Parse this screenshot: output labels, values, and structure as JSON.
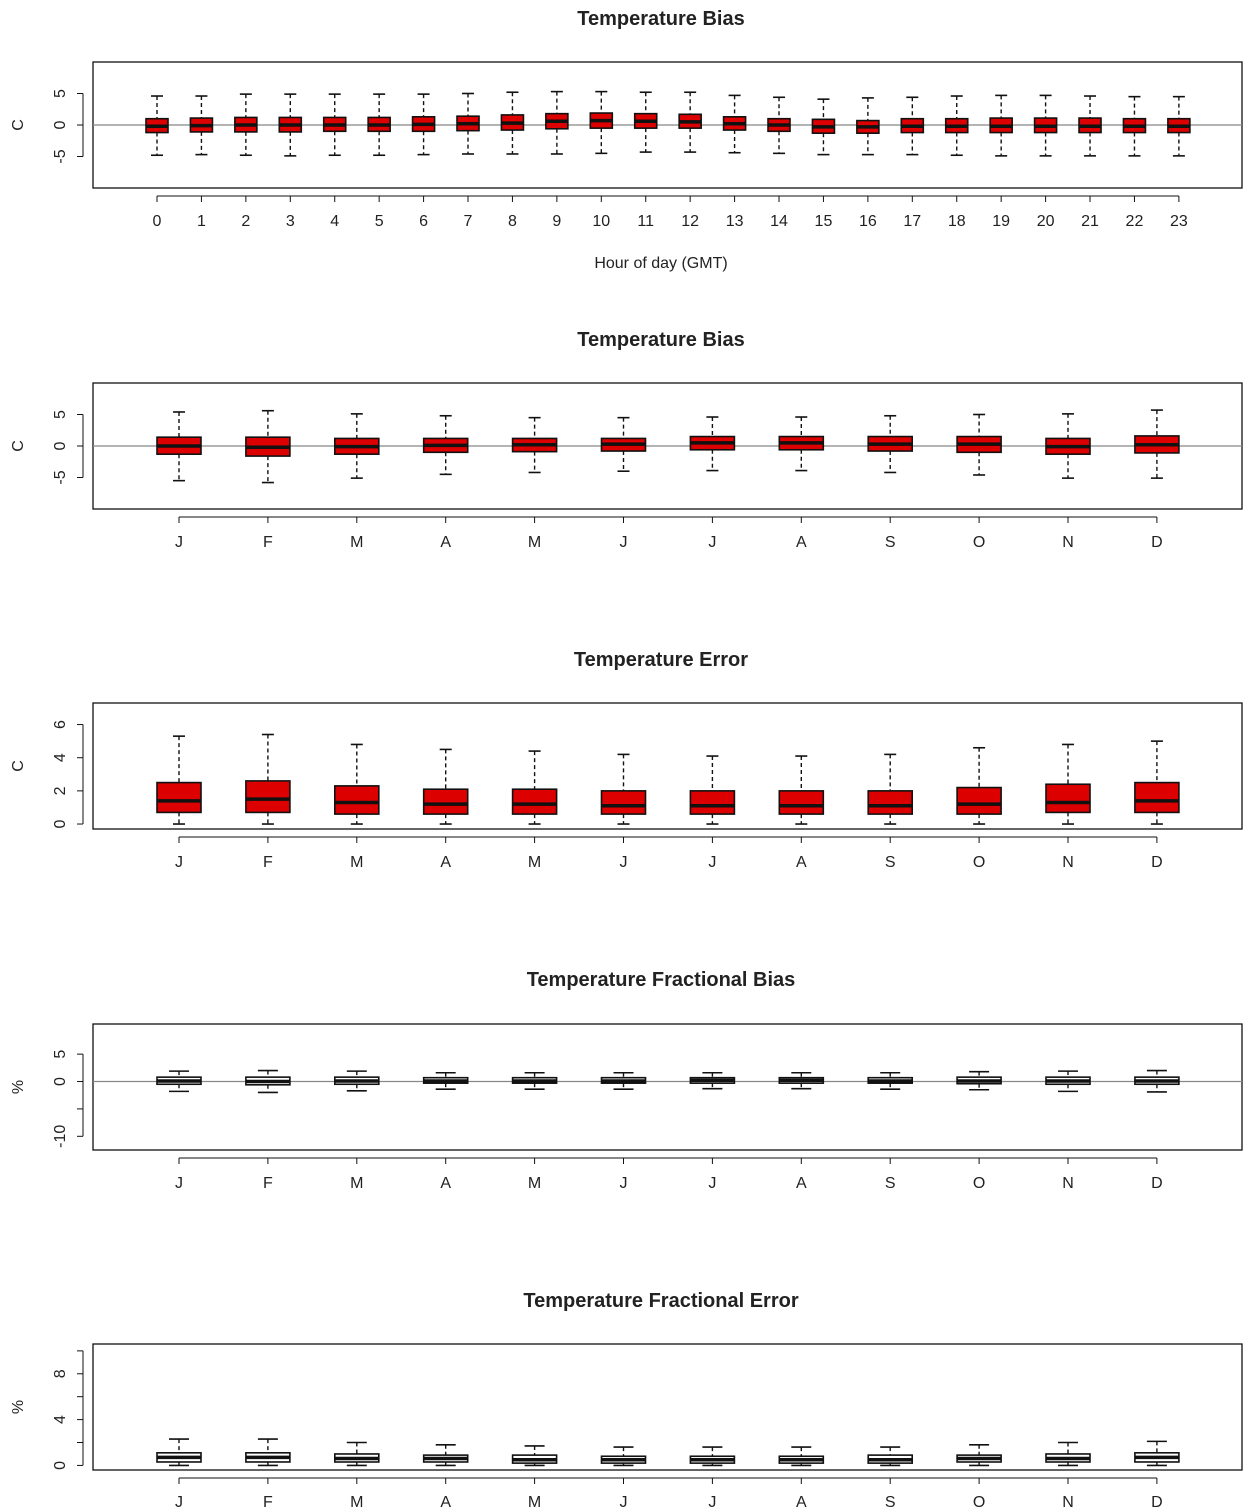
{
  "chart_data": [
    {
      "type": "box",
      "title": "Temperature Bias",
      "xlabel": "Hour of day (GMT)",
      "ylabel": "C",
      "ylim": [
        -10,
        10
      ],
      "yticks": [
        "5",
        "0",
        "-5"
      ],
      "ytick_values": [
        5,
        0,
        -5
      ],
      "reference_line": 0,
      "box_color": "#dd0000",
      "categories": [
        "0",
        "1",
        "2",
        "3",
        "4",
        "5",
        "6",
        "7",
        "8",
        "9",
        "10",
        "11",
        "12",
        "13",
        "14",
        "15",
        "16",
        "17",
        "18",
        "19",
        "20",
        "21",
        "22",
        "23"
      ],
      "boxes": [
        {
          "whislo": -4.8,
          "q1": -1.2,
          "med": -0.2,
          "q3": 1.0,
          "whishi": 4.6
        },
        {
          "whislo": -4.7,
          "q1": -1.1,
          "med": -0.1,
          "q3": 1.1,
          "whishi": 4.6
        },
        {
          "whislo": -4.8,
          "q1": -1.1,
          "med": 0.0,
          "q3": 1.2,
          "whishi": 4.9
        },
        {
          "whislo": -4.9,
          "q1": -1.1,
          "med": 0.0,
          "q3": 1.2,
          "whishi": 4.9
        },
        {
          "whislo": -4.8,
          "q1": -1.0,
          "med": 0.0,
          "q3": 1.2,
          "whishi": 4.9
        },
        {
          "whislo": -4.8,
          "q1": -1.0,
          "med": 0.0,
          "q3": 1.2,
          "whishi": 4.9
        },
        {
          "whislo": -4.7,
          "q1": -1.0,
          "med": 0.1,
          "q3": 1.3,
          "whishi": 4.9
        },
        {
          "whislo": -4.6,
          "q1": -0.9,
          "med": 0.2,
          "q3": 1.4,
          "whishi": 5.0
        },
        {
          "whislo": -4.6,
          "q1": -0.8,
          "med": 0.3,
          "q3": 1.6,
          "whishi": 5.2
        },
        {
          "whislo": -4.6,
          "q1": -0.6,
          "med": 0.6,
          "q3": 1.8,
          "whishi": 5.3
        },
        {
          "whislo": -4.5,
          "q1": -0.5,
          "med": 0.7,
          "q3": 1.9,
          "whishi": 5.3
        },
        {
          "whislo": -4.3,
          "q1": -0.5,
          "med": 0.6,
          "q3": 1.8,
          "whishi": 5.2
        },
        {
          "whislo": -4.3,
          "q1": -0.5,
          "med": 0.5,
          "q3": 1.7,
          "whishi": 5.2
        },
        {
          "whislo": -4.4,
          "q1": -0.8,
          "med": 0.2,
          "q3": 1.3,
          "whishi": 4.7
        },
        {
          "whislo": -4.5,
          "q1": -1.0,
          "med": 0.0,
          "q3": 1.0,
          "whishi": 4.4
        },
        {
          "whislo": -4.7,
          "q1": -1.3,
          "med": -0.3,
          "q3": 0.9,
          "whishi": 4.1
        },
        {
          "whislo": -4.7,
          "q1": -1.3,
          "med": -0.3,
          "q3": 0.7,
          "whishi": 4.3
        },
        {
          "whislo": -4.7,
          "q1": -1.2,
          "med": -0.2,
          "q3": 1.0,
          "whishi": 4.4
        },
        {
          "whislo": -4.8,
          "q1": -1.2,
          "med": -0.2,
          "q3": 1.0,
          "whishi": 4.6
        },
        {
          "whislo": -4.9,
          "q1": -1.2,
          "med": -0.2,
          "q3": 1.1,
          "whishi": 4.7
        },
        {
          "whislo": -4.9,
          "q1": -1.2,
          "med": -0.2,
          "q3": 1.1,
          "whishi": 4.7
        },
        {
          "whislo": -4.9,
          "q1": -1.2,
          "med": -0.2,
          "q3": 1.1,
          "whishi": 4.6
        },
        {
          "whislo": -4.9,
          "q1": -1.2,
          "med": -0.2,
          "q3": 1.0,
          "whishi": 4.5
        },
        {
          "whislo": -4.9,
          "q1": -1.2,
          "med": -0.2,
          "q3": 1.0,
          "whishi": 4.5
        }
      ]
    },
    {
      "type": "box",
      "title": "Temperature Bias",
      "xlabel": "",
      "ylabel": "C",
      "ylim": [
        -10,
        10
      ],
      "yticks": [
        "5",
        "0",
        "-5"
      ],
      "ytick_values": [
        5,
        0,
        -5
      ],
      "reference_line": 0,
      "box_color": "#dd0000",
      "categories": [
        "J",
        "F",
        "M",
        "A",
        "M",
        "J",
        "J",
        "A",
        "S",
        "O",
        "N",
        "D"
      ],
      "boxes": [
        {
          "whislo": -5.5,
          "q1": -1.3,
          "med": 0.0,
          "q3": 1.4,
          "whishi": 5.4
        },
        {
          "whislo": -5.8,
          "q1": -1.6,
          "med": -0.2,
          "q3": 1.4,
          "whishi": 5.6
        },
        {
          "whislo": -5.1,
          "q1": -1.3,
          "med": -0.1,
          "q3": 1.2,
          "whishi": 5.1
        },
        {
          "whislo": -4.5,
          "q1": -1.0,
          "med": 0.1,
          "q3": 1.2,
          "whishi": 4.8
        },
        {
          "whislo": -4.2,
          "q1": -0.9,
          "med": 0.2,
          "q3": 1.2,
          "whishi": 4.5
        },
        {
          "whislo": -4.0,
          "q1": -0.8,
          "med": 0.3,
          "q3": 1.2,
          "whishi": 4.5
        },
        {
          "whislo": -3.9,
          "q1": -0.6,
          "med": 0.5,
          "q3": 1.5,
          "whishi": 4.6
        },
        {
          "whislo": -3.9,
          "q1": -0.6,
          "med": 0.5,
          "q3": 1.5,
          "whishi": 4.6
        },
        {
          "whislo": -4.2,
          "q1": -0.8,
          "med": 0.3,
          "q3": 1.5,
          "whishi": 4.8
        },
        {
          "whislo": -4.6,
          "q1": -1.0,
          "med": 0.3,
          "q3": 1.5,
          "whishi": 5.0
        },
        {
          "whislo": -5.1,
          "q1": -1.3,
          "med": -0.1,
          "q3": 1.2,
          "whishi": 5.1
        },
        {
          "whislo": -5.1,
          "q1": -1.1,
          "med": 0.2,
          "q3": 1.6,
          "whishi": 5.7
        }
      ]
    },
    {
      "type": "box",
      "title": "Temperature Error",
      "xlabel": "",
      "ylabel": "C",
      "ylim": [
        -0.3,
        7.3
      ],
      "yticks": [
        "6",
        "4",
        "2",
        "0"
      ],
      "ytick_values": [
        6,
        4,
        2,
        0
      ],
      "reference_line": null,
      "box_color": "#dd0000",
      "categories": [
        "J",
        "F",
        "M",
        "A",
        "M",
        "J",
        "J",
        "A",
        "S",
        "O",
        "N",
        "D"
      ],
      "boxes": [
        {
          "whislo": 0.0,
          "q1": 0.7,
          "med": 1.4,
          "q3": 2.5,
          "whishi": 5.3
        },
        {
          "whislo": 0.0,
          "q1": 0.7,
          "med": 1.5,
          "q3": 2.6,
          "whishi": 5.4
        },
        {
          "whislo": 0.0,
          "q1": 0.6,
          "med": 1.3,
          "q3": 2.3,
          "whishi": 4.8
        },
        {
          "whislo": 0.0,
          "q1": 0.6,
          "med": 1.2,
          "q3": 2.1,
          "whishi": 4.5
        },
        {
          "whislo": 0.0,
          "q1": 0.6,
          "med": 1.2,
          "q3": 2.1,
          "whishi": 4.4
        },
        {
          "whislo": 0.0,
          "q1": 0.6,
          "med": 1.1,
          "q3": 2.0,
          "whishi": 4.2
        },
        {
          "whislo": 0.0,
          "q1": 0.6,
          "med": 1.1,
          "q3": 2.0,
          "whishi": 4.1
        },
        {
          "whislo": 0.0,
          "q1": 0.6,
          "med": 1.1,
          "q3": 2.0,
          "whishi": 4.1
        },
        {
          "whislo": 0.0,
          "q1": 0.6,
          "med": 1.1,
          "q3": 2.0,
          "whishi": 4.2
        },
        {
          "whislo": 0.0,
          "q1": 0.6,
          "med": 1.2,
          "q3": 2.2,
          "whishi": 4.6
        },
        {
          "whislo": 0.0,
          "q1": 0.7,
          "med": 1.3,
          "q3": 2.4,
          "whishi": 4.8
        },
        {
          "whislo": 0.0,
          "q1": 0.7,
          "med": 1.4,
          "q3": 2.5,
          "whishi": 5.0
        }
      ]
    },
    {
      "type": "box",
      "title": "Temperature Fractional Bias",
      "xlabel": "",
      "ylabel": "%",
      "ylim": [
        -12.5,
        10.5
      ],
      "yticks": [
        "5",
        "0",
        "-10"
      ],
      "ytick_values": [
        5,
        0,
        -10
      ],
      "extra_ticks": [
        -5
      ],
      "reference_line": 0,
      "box_color": "#ffffff",
      "categories": [
        "J",
        "F",
        "M",
        "A",
        "M",
        "J",
        "J",
        "A",
        "S",
        "O",
        "N",
        "D"
      ],
      "boxes": [
        {
          "whislo": -1.8,
          "q1": -0.5,
          "med": 0.1,
          "q3": 0.8,
          "whishi": 1.9
        },
        {
          "whislo": -2.0,
          "q1": -0.6,
          "med": 0.0,
          "q3": 0.8,
          "whishi": 2.0
        },
        {
          "whislo": -1.7,
          "q1": -0.5,
          "med": 0.1,
          "q3": 0.8,
          "whishi": 1.9
        },
        {
          "whislo": -1.4,
          "q1": -0.3,
          "med": 0.1,
          "q3": 0.7,
          "whishi": 1.6
        },
        {
          "whislo": -1.4,
          "q1": -0.3,
          "med": 0.1,
          "q3": 0.7,
          "whishi": 1.6
        },
        {
          "whislo": -1.4,
          "q1": -0.3,
          "med": 0.1,
          "q3": 0.7,
          "whishi": 1.6
        },
        {
          "whislo": -1.3,
          "q1": -0.3,
          "med": 0.2,
          "q3": 0.7,
          "whishi": 1.6
        },
        {
          "whislo": -1.3,
          "q1": -0.3,
          "med": 0.2,
          "q3": 0.7,
          "whishi": 1.6
        },
        {
          "whislo": -1.4,
          "q1": -0.3,
          "med": 0.1,
          "q3": 0.7,
          "whishi": 1.6
        },
        {
          "whislo": -1.5,
          "q1": -0.4,
          "med": 0.1,
          "q3": 0.8,
          "whishi": 1.8
        },
        {
          "whislo": -1.8,
          "q1": -0.5,
          "med": 0.1,
          "q3": 0.8,
          "whishi": 1.9
        },
        {
          "whislo": -1.9,
          "q1": -0.5,
          "med": 0.1,
          "q3": 0.8,
          "whishi": 2.0
        }
      ]
    },
    {
      "type": "box",
      "title": "Temperature Fractional Error",
      "xlabel": "",
      "ylabel": "%",
      "ylim": [
        -0.4,
        10.6
      ],
      "yticks": [
        "8",
        "4",
        "0"
      ],
      "ytick_values": [
        8,
        4,
        0
      ],
      "extra_ticks": [
        2,
        6,
        10
      ],
      "reference_line": null,
      "box_color": "#ffffff",
      "categories": [
        "J",
        "F",
        "M",
        "A",
        "M",
        "J",
        "J",
        "A",
        "S",
        "O",
        "N",
        "D"
      ],
      "boxes": [
        {
          "whislo": 0.0,
          "q1": 0.3,
          "med": 0.7,
          "q3": 1.1,
          "whishi": 2.3
        },
        {
          "whislo": 0.0,
          "q1": 0.3,
          "med": 0.7,
          "q3": 1.1,
          "whishi": 2.3
        },
        {
          "whislo": 0.0,
          "q1": 0.3,
          "med": 0.6,
          "q3": 1.0,
          "whishi": 2.0
        },
        {
          "whislo": 0.0,
          "q1": 0.3,
          "med": 0.6,
          "q3": 0.9,
          "whishi": 1.8
        },
        {
          "whislo": 0.0,
          "q1": 0.2,
          "med": 0.5,
          "q3": 0.9,
          "whishi": 1.7
        },
        {
          "whislo": 0.0,
          "q1": 0.2,
          "med": 0.5,
          "q3": 0.8,
          "whishi": 1.6
        },
        {
          "whislo": 0.0,
          "q1": 0.2,
          "med": 0.5,
          "q3": 0.8,
          "whishi": 1.6
        },
        {
          "whislo": 0.0,
          "q1": 0.2,
          "med": 0.5,
          "q3": 0.8,
          "whishi": 1.6
        },
        {
          "whislo": 0.0,
          "q1": 0.2,
          "med": 0.5,
          "q3": 0.9,
          "whishi": 1.6
        },
        {
          "whislo": 0.0,
          "q1": 0.3,
          "med": 0.6,
          "q3": 0.9,
          "whishi": 1.8
        },
        {
          "whislo": 0.0,
          "q1": 0.3,
          "med": 0.6,
          "q3": 1.0,
          "whishi": 2.0
        },
        {
          "whislo": 0.0,
          "q1": 0.3,
          "med": 0.7,
          "q3": 1.1,
          "whishi": 2.1
        }
      ]
    }
  ]
}
